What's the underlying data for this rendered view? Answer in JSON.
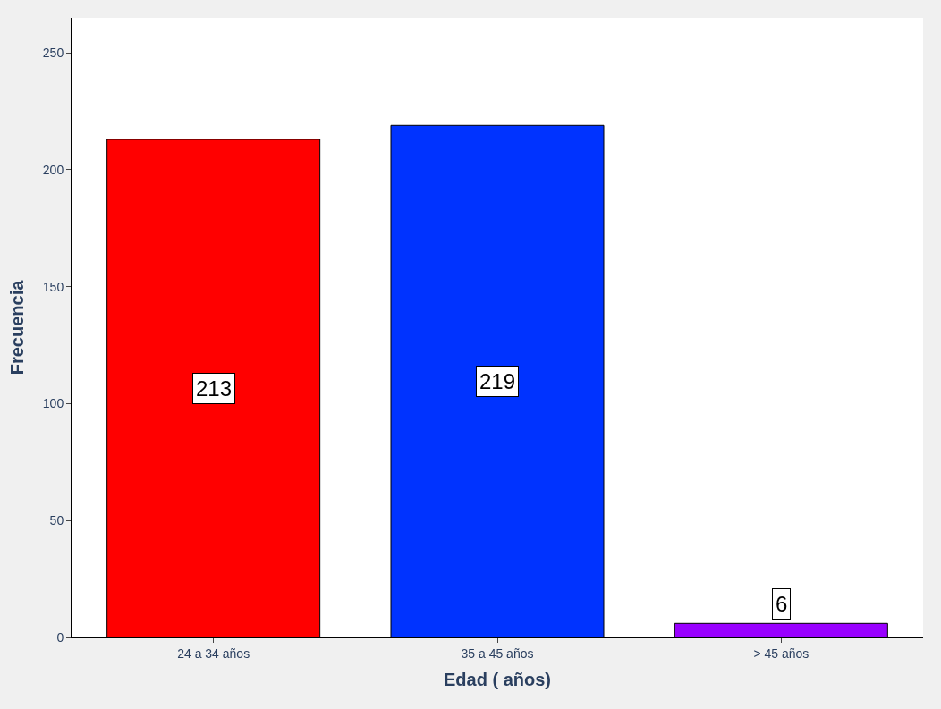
{
  "chart_data": {
    "type": "bar",
    "xlabel": "Edad ( años)",
    "ylabel": "Frecuencia",
    "categories": [
      "24 a 34 años",
      "35 a 45 años",
      "> 45 años"
    ],
    "values": [
      213,
      219,
      6
    ],
    "colors": [
      "#ff0000",
      "#0033ff",
      "#9900ff"
    ],
    "ylim": [
      0,
      265
    ],
    "yticks": [
      0,
      50,
      100,
      150,
      200,
      250
    ],
    "data_labels": true
  }
}
